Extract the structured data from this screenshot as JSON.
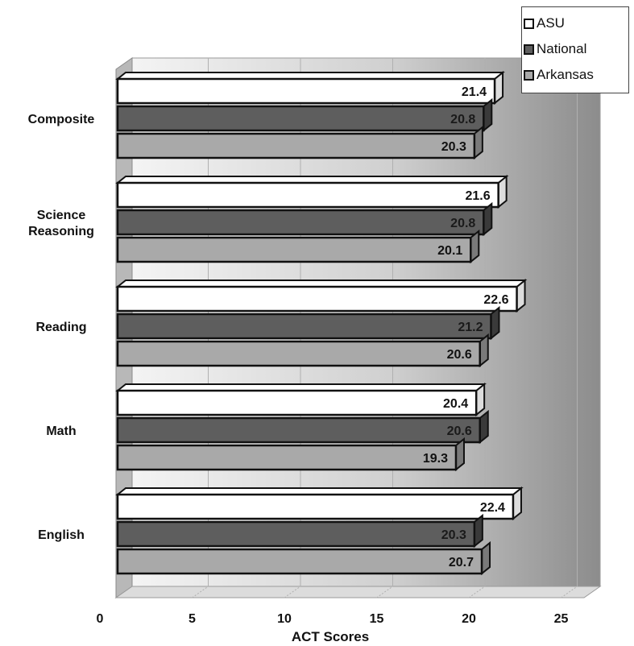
{
  "chart_data": {
    "type": "bar",
    "orientation": "horizontal",
    "categories": [
      "Composite",
      "Science Reasoning",
      "Reading",
      "Math",
      "English"
    ],
    "series": [
      {
        "name": "ASU",
        "values": [
          21.4,
          21.6,
          22.6,
          20.4,
          22.4
        ],
        "color": "#ffffff"
      },
      {
        "name": "National",
        "values": [
          20.8,
          20.8,
          21.2,
          20.6,
          20.3
        ],
        "color": "#5e5e5e"
      },
      {
        "name": "Arkansas",
        "values": [
          20.3,
          20.1,
          20.6,
          19.3,
          20.7
        ],
        "color": "#a9a9a9"
      }
    ],
    "xlabel": "ACT Scores",
    "xlim": [
      0,
      25
    ],
    "xticks": [
      "0",
      "5",
      "10",
      "15",
      "20",
      "25"
    ],
    "grid": true,
    "legend_position": "top-right",
    "data_labels": true
  }
}
